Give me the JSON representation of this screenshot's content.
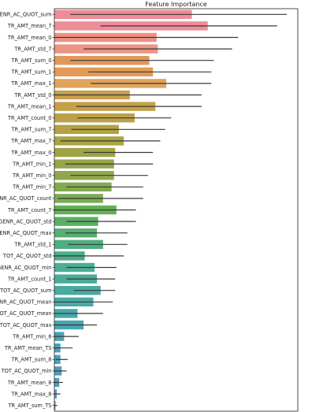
{
  "chart_data": {
    "type": "bar",
    "orientation": "horizontal",
    "title": "Feature Importance",
    "xlabel": "",
    "ylabel": "",
    "xlim": [
      0,
      1.0
    ],
    "grid": false,
    "legend": "none",
    "error_bars": true,
    "categories": [
      "GENR_AC_QUOT_sum",
      "TR_AMT_mean_7",
      "TR_AMT_mean_0",
      "TR_AMT_std_7",
      "TR_AMT_sum_0",
      "TR_AMT_sum_1",
      "TR_AMT_max_1",
      "TR_AMT_std_0",
      "TR_AMT_mean_1",
      "TR_AMT_count_0",
      "TR_AMT_sum_7",
      "TR_AMT_max_7",
      "TR_AMT_max_0",
      "TR_AMT_min_1",
      "TR_AMT_min_0",
      "TR_AMT_min_7",
      "GENR_AC_QUOT_count",
      "TR_AMT_count_7",
      "GENR_AC_QUOT_std",
      "GENR_AC_QUOT_max",
      "TR_AMT_std_1",
      "TOT_AC_QUOT_std",
      "GENR_AC_QUOT_min",
      "TR_AMT_count_1",
      "TOT_AC_QUOT_sum",
      "GENR_AC_QUOT_mean",
      "TOT_AC_QUOT_mean",
      "TOT_AC_QUOT_max",
      "TR_AMT_min_8",
      "TR_AMT_mean_TS",
      "TR_AMT_sum_8",
      "TOT_AC_QUOT_min",
      "TR_AMT_mean_8",
      "TR_AMT_max_8",
      "TR_AMT_sum_TS"
    ],
    "values": [
      0.565,
      0.63,
      0.42,
      0.425,
      0.39,
      0.405,
      0.46,
      0.31,
      0.415,
      0.33,
      0.265,
      0.285,
      0.25,
      0.245,
      0.245,
      0.235,
      0.2,
      0.255,
      0.18,
      0.175,
      0.2,
      0.125,
      0.165,
      0.175,
      0.19,
      0.16,
      0.095,
      0.12,
      0.04,
      0.025,
      0.025,
      0.03,
      0.02,
      0.01,
      0.005
    ],
    "error_low": [
      0.065,
      0.19,
      0.0,
      0.12,
      0.065,
      0.14,
      0.15,
      0.0,
      0.09,
      0.095,
      0.07,
      0.025,
      0.12,
      0.045,
      0.065,
      0.05,
      0.015,
      0.0,
      0.05,
      0.045,
      0.055,
      0.0,
      0.05,
      0.05,
      0.08,
      0.0,
      0.0,
      0.0,
      0.0,
      0.0,
      0.005,
      0.0,
      0.0,
      0.0,
      0.0
    ],
    "error_high": [
      0.955,
      0.915,
      0.755,
      0.73,
      0.655,
      0.645,
      0.645,
      0.605,
      0.605,
      0.48,
      0.455,
      0.435,
      0.405,
      0.405,
      0.385,
      0.365,
      0.365,
      0.335,
      0.335,
      0.3,
      0.3,
      0.285,
      0.255,
      0.25,
      0.25,
      0.24,
      0.2,
      0.175,
      0.1,
      0.075,
      0.055,
      0.05,
      0.035,
      0.025,
      0.012
    ],
    "colors": [
      "#ee8c97",
      "#ee8c97",
      "#ee9083",
      "#ee9483",
      "#e29759",
      "#e29a56",
      "#e0a35a",
      "#c99f4b",
      "#c5a048",
      "#bda148",
      "#b3a143",
      "#aaa443",
      "#a0a343",
      "#96a548",
      "#8fa84d",
      "#82aa4f",
      "#7bab54",
      "#62b054",
      "#5aaf64",
      "#56ae72",
      "#4fae80",
      "#4ead8a",
      "#4cad94",
      "#4aab9a",
      "#49aaa0",
      "#48a9a6",
      "#48a8ab",
      "#48a6b0",
      "#49a3b5",
      "#4aa2b8",
      "#4ca0bb",
      "#4e9ebe",
      "#519cc1",
      "#549ac3",
      "#5798c6"
    ]
  }
}
